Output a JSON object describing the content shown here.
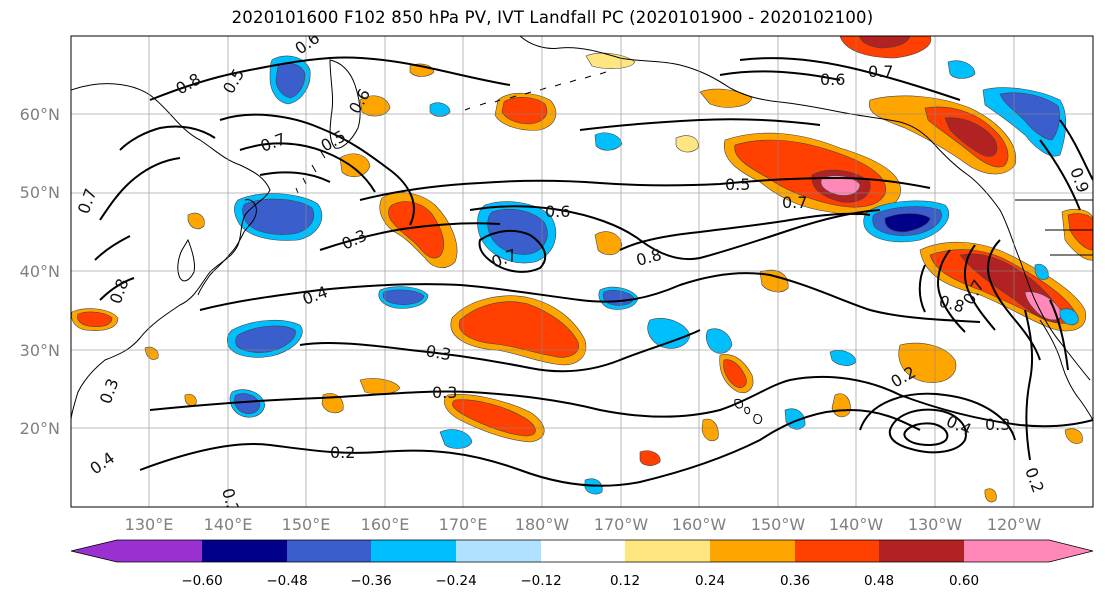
{
  "title": "2020101600 F102 850 hPa PV, IVT Landfall PC (2020101900 - 2020102100)",
  "axes": {
    "lat_labels": [
      "60°N",
      "50°N",
      "40°N",
      "30°N",
      "20°N"
    ],
    "lon_labels": [
      "130°E",
      "140°E",
      "150°E",
      "160°E",
      "170°E",
      "180°W",
      "170°W",
      "160°W",
      "150°W",
      "140°W",
      "130°W",
      "120°W"
    ]
  },
  "colorbar": {
    "tick_labels": [
      "−0.60",
      "−0.48",
      "−0.36",
      "−0.24",
      "−0.12",
      "0.12",
      "0.24",
      "0.36",
      "0.48",
      "0.60"
    ],
    "colors": [
      "#9b30d0",
      "#00008b",
      "#3a5fcd",
      "#00bfff",
      "#b0e2ff",
      "#ffffff",
      "#ffe680",
      "#ffa500",
      "#ff4000",
      "#b22222",
      "#ff88b8"
    ]
  },
  "contour_labels": [
    "0.6",
    "0.8",
    "0.5",
    "0.7",
    "0.5",
    "0.6",
    "0.7",
    "0.6",
    "0.5",
    "0.7",
    "0.6",
    "0.3",
    "0.7",
    "0.8",
    "0.4",
    "0.3",
    "0.3",
    "0.2",
    "0.8",
    "0.7",
    "0.2",
    "0.4",
    "0.3",
    "0.2",
    "0.3",
    "0.4",
    "0.2",
    "0.7",
    "0.9",
    "0.8"
  ]
}
